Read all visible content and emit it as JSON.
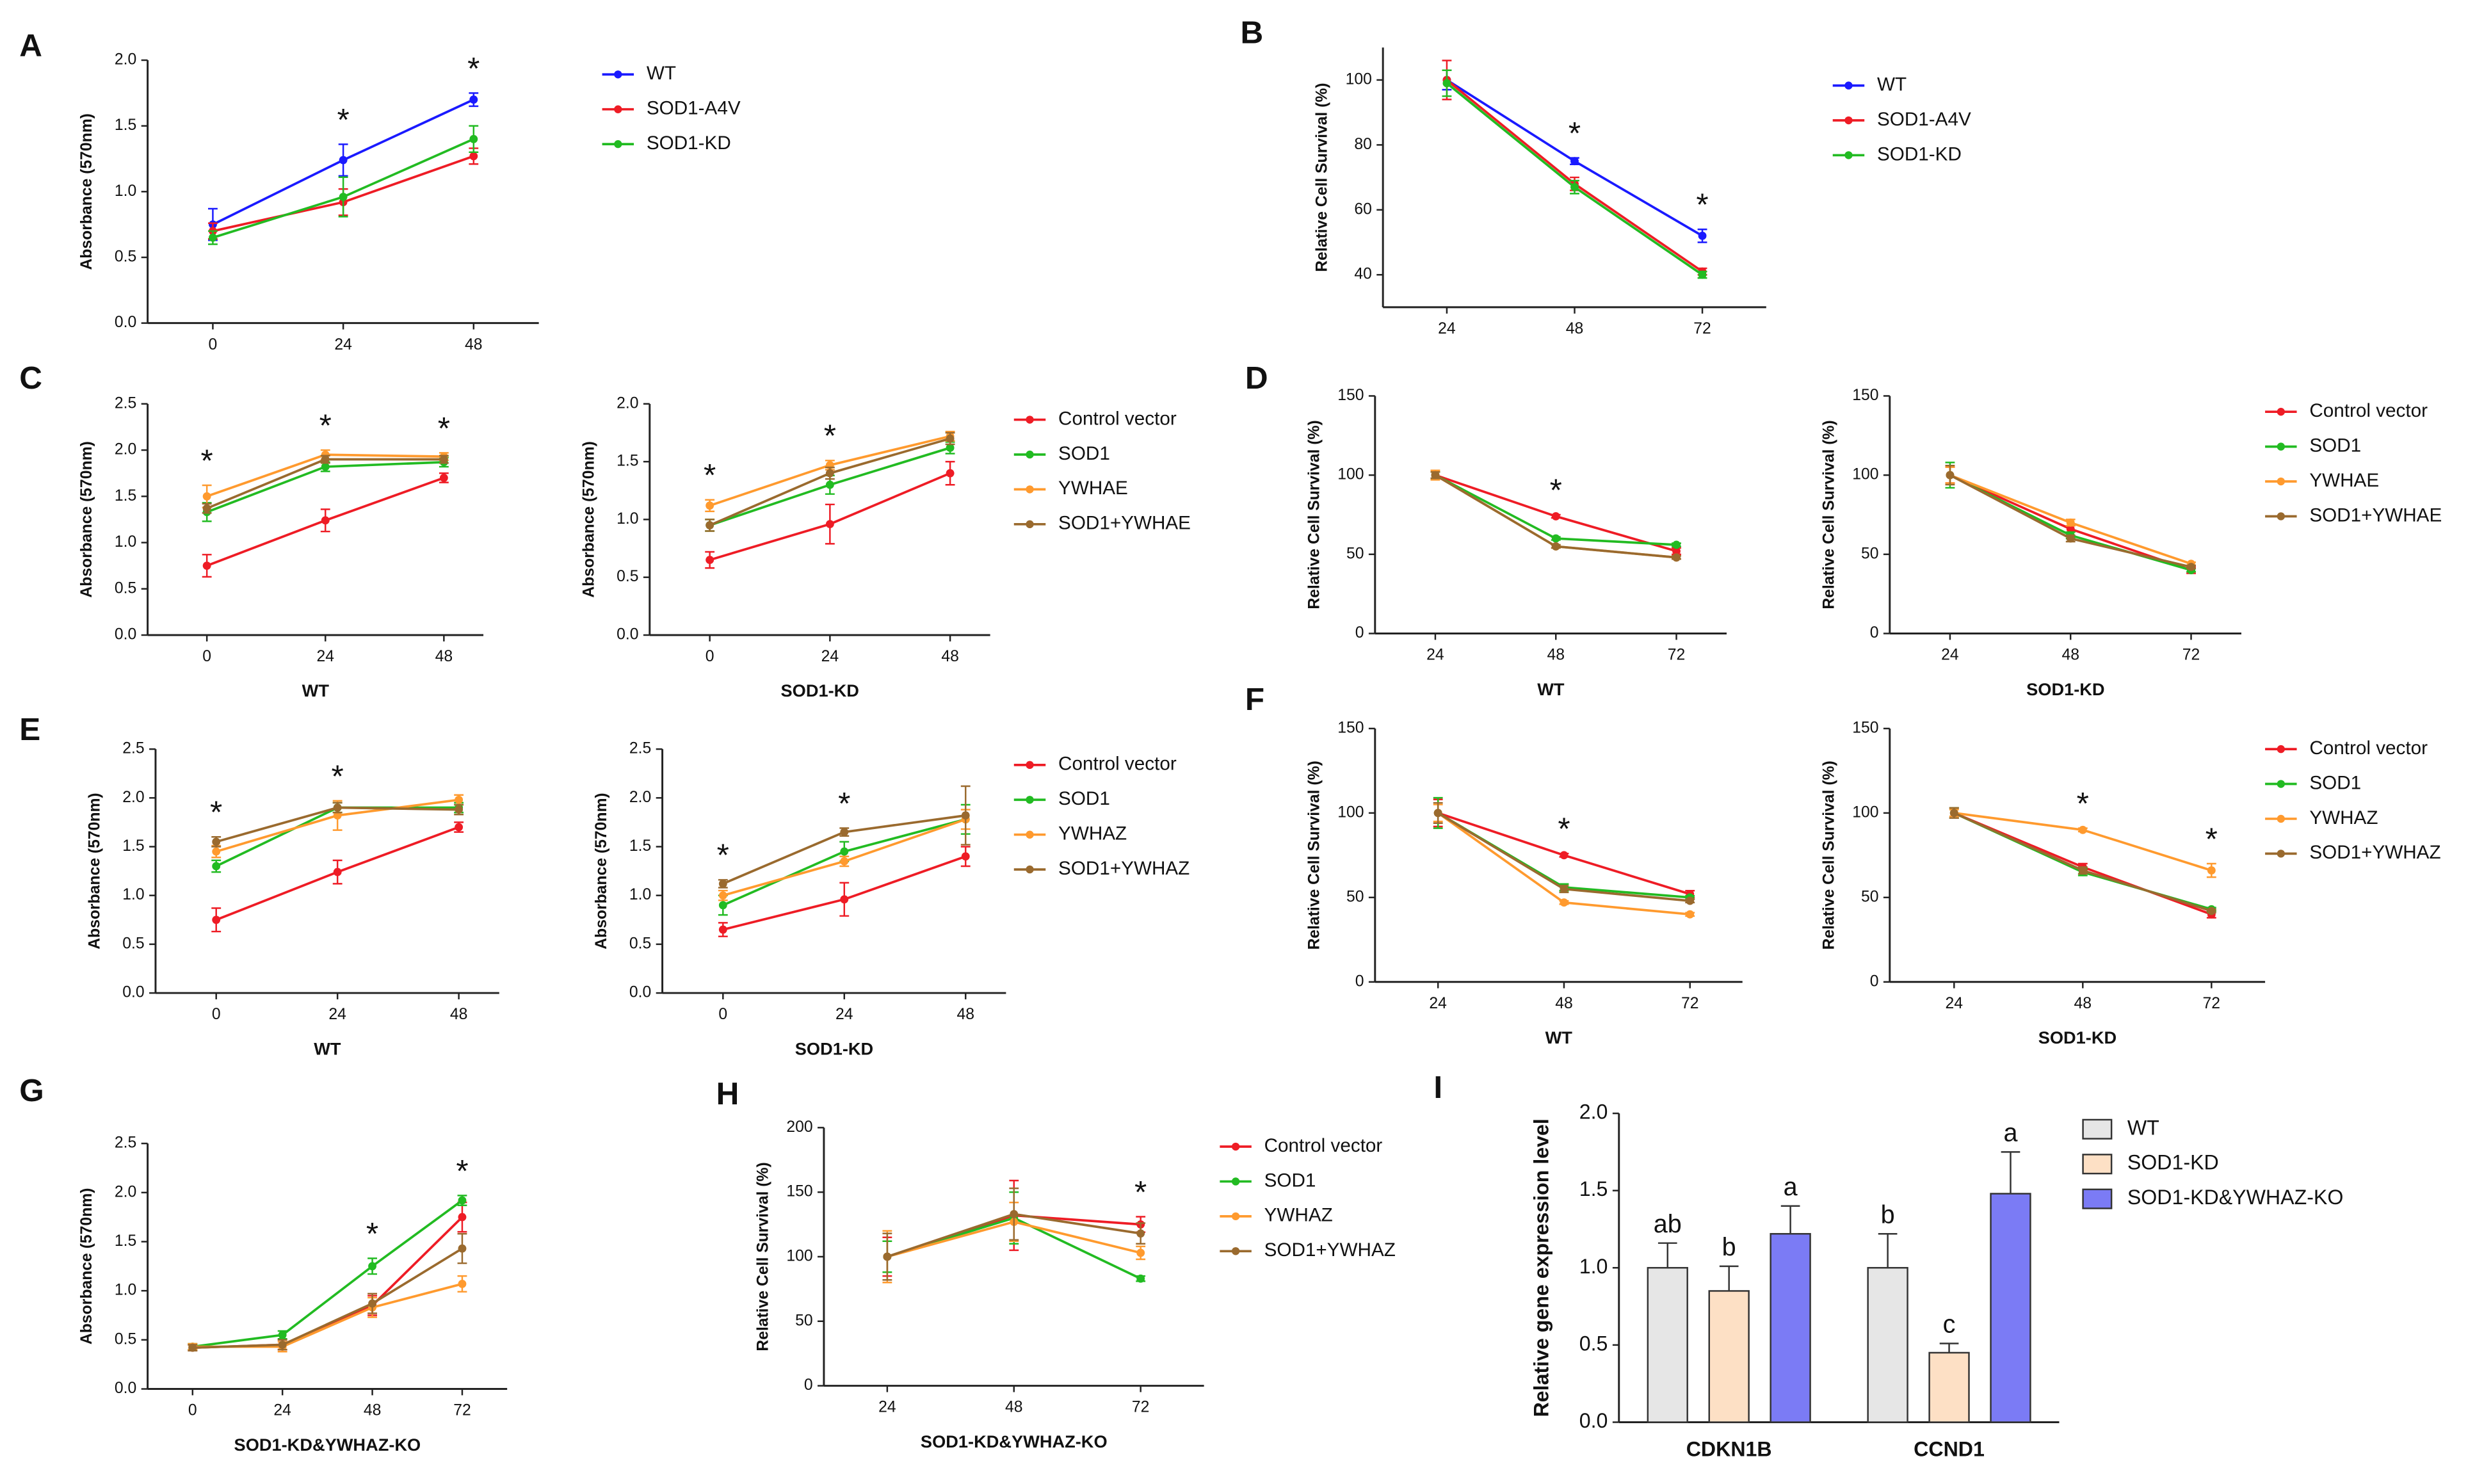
{
  "chart_data": [
    {
      "panel": "A",
      "type": "line",
      "y_label": "Absorbance (570nm)",
      "x": [
        0,
        24,
        48
      ],
      "xlim": [
        -12,
        60
      ],
      "ylim": [
        0,
        2
      ],
      "yticks": [
        {
          "value": 0,
          "label": "0.0"
        },
        {
          "value": 0.5,
          "label": "0.5"
        },
        {
          "value": 1,
          "label": "1.0"
        },
        {
          "value": 1.5,
          "label": "1.5"
        },
        {
          "value": 2,
          "label": "2.0"
        }
      ],
      "significance": [
        null,
        "*",
        "*"
      ],
      "series": [
        {
          "name": "WT",
          "color": "#1a1aff",
          "values": [
            0.75,
            1.24,
            1.7
          ],
          "errors": [
            0.12,
            0.12,
            0.05
          ]
        },
        {
          "name": "SOD1-A4V",
          "color": "#ee1c25",
          "values": [
            0.7,
            0.92,
            1.27
          ],
          "errors": [
            0.06,
            0.1,
            0.06
          ]
        },
        {
          "name": "SOD1-KD",
          "color": "#22bb22",
          "values": [
            0.65,
            0.96,
            1.4
          ],
          "errors": [
            0.05,
            0.15,
            0.1
          ]
        }
      ]
    },
    {
      "panel": "B",
      "type": "line",
      "y_label": "Relative Cell Survival (%)",
      "x": [
        24,
        48,
        72
      ],
      "xlim": [
        12,
        84
      ],
      "ylim": [
        30,
        110
      ],
      "yticks": [
        40,
        60,
        80,
        100
      ],
      "significance": [
        null,
        "*",
        "*"
      ],
      "series": [
        {
          "name": "WT",
          "color": "#1a1aff",
          "values": [
            100,
            75,
            52
          ],
          "errors": [
            3,
            1,
            2
          ]
        },
        {
          "name": "SOD1-A4V",
          "color": "#ee1c25",
          "values": [
            100,
            68,
            41
          ],
          "errors": [
            6,
            2,
            1
          ]
        },
        {
          "name": "SOD1-KD",
          "color": "#22bb22",
          "values": [
            99,
            67,
            40
          ],
          "errors": [
            4,
            2,
            1
          ]
        }
      ]
    },
    {
      "panel": "C",
      "type": "line",
      "y_label": "Absorbance (570nm)",
      "x_label": "WT",
      "x": [
        0,
        24,
        48
      ],
      "xlim": [
        -12,
        56
      ],
      "ylim": [
        0,
        2.5
      ],
      "yticks": [
        {
          "value": 0,
          "label": "0.0"
        },
        {
          "value": 0.5,
          "label": "0.5"
        },
        {
          "value": 1,
          "label": "1.0"
        },
        {
          "value": 1.5,
          "label": "1.5"
        },
        {
          "value": 2,
          "label": "2.0"
        },
        {
          "value": 2.5,
          "label": "2.5"
        }
      ],
      "significance": [
        "*",
        "*",
        "*"
      ],
      "series": [
        {
          "color": "#ee1c25",
          "values": [
            0.75,
            1.24,
            1.7
          ],
          "errors": [
            0.12,
            0.12,
            0.05
          ]
        },
        {
          "color": "#22bb22",
          "values": [
            1.33,
            1.82,
            1.87
          ],
          "errors": [
            0.1,
            0.05,
            0.05
          ]
        },
        {
          "color": "#ff9a2e",
          "values": [
            1.5,
            1.95,
            1.93
          ],
          "errors": [
            0.12,
            0.05,
            0.04
          ]
        },
        {
          "color": "#9a6a2e",
          "values": [
            1.37,
            1.9,
            1.9
          ],
          "errors": [
            0.05,
            0.04,
            0.04
          ]
        }
      ]
    },
    {
      "type": "line",
      "y_label": "Absorbance (570nm)",
      "x_label": "SOD1-KD",
      "x": [
        0,
        24,
        48
      ],
      "xlim": [
        -12,
        56
      ],
      "ylim": [
        0,
        2
      ],
      "yticks": [
        {
          "value": 0,
          "label": "0.0"
        },
        {
          "value": 0.5,
          "label": "0.5"
        },
        {
          "value": 1,
          "label": "1.0"
        },
        {
          "value": 1.5,
          "label": "1.5"
        },
        {
          "value": 2,
          "label": "2.0"
        }
      ],
      "significance": [
        "*",
        "*",
        null
      ],
      "series": [
        {
          "name": "Control vector",
          "color": "#ee1c25",
          "values": [
            0.65,
            0.96,
            1.4
          ],
          "errors": [
            0.07,
            0.17,
            0.1
          ]
        },
        {
          "name": "SOD1",
          "color": "#22bb22",
          "values": [
            0.95,
            1.3,
            1.62
          ],
          "errors": [
            0.05,
            0.08,
            0.05
          ]
        },
        {
          "name": "YWHAE",
          "color": "#ff9a2e",
          "values": [
            1.12,
            1.47,
            1.72
          ],
          "errors": [
            0.05,
            0.04,
            0.04
          ]
        },
        {
          "name": "SOD1+YWHAE",
          "color": "#9a6a2e",
          "values": [
            0.95,
            1.4,
            1.7
          ],
          "errors": [
            0.05,
            0.05,
            0.05
          ]
        }
      ]
    },
    {
      "panel": "D",
      "type": "line",
      "y_label": "Relative Cell Survival (%)",
      "x_label": "WT",
      "x": [
        24,
        48,
        72
      ],
      "xlim": [
        12,
        82
      ],
      "ylim": [
        0,
        150
      ],
      "yticks": [
        0,
        50,
        100,
        150
      ],
      "significance": [
        null,
        "*",
        null
      ],
      "series": [
        {
          "color": "#ee1c25",
          "values": [
            100,
            74,
            52
          ],
          "errors": [
            2,
            1,
            2
          ]
        },
        {
          "color": "#22bb22",
          "values": [
            100,
            60,
            56
          ],
          "errors": [
            2,
            1,
            1
          ]
        },
        {
          "color": "#ff9a2e",
          "values": [
            100,
            55,
            48
          ],
          "errors": [
            3,
            1,
            1
          ]
        },
        {
          "color": "#9a6a2e",
          "values": [
            100,
            55,
            48
          ],
          "errors": [
            2,
            1,
            1
          ]
        }
      ]
    },
    {
      "type": "line",
      "y_label": "Relative Cell Survival (%)",
      "x_label": "SOD1-KD",
      "x": [
        24,
        48,
        72
      ],
      "xlim": [
        12,
        82
      ],
      "ylim": [
        0,
        150
      ],
      "yticks": [
        0,
        50,
        100,
        150
      ],
      "significance": [
        null,
        null,
        null
      ],
      "series": [
        {
          "name": "Control vector",
          "color": "#ee1c25",
          "values": [
            100,
            66,
            40
          ],
          "errors": [
            5,
            2,
            2
          ]
        },
        {
          "name": "SOD1",
          "color": "#22bb22",
          "values": [
            100,
            62,
            40
          ],
          "errors": [
            8,
            2,
            1
          ]
        },
        {
          "name": "YWHAE",
          "color": "#ff9a2e",
          "values": [
            100,
            70,
            44
          ],
          "errors": [
            5,
            2,
            1
          ]
        },
        {
          "name": "SOD1+YWHAE",
          "color": "#9a6a2e",
          "values": [
            100,
            60,
            42
          ],
          "errors": [
            6,
            2,
            1
          ]
        }
      ]
    },
    {
      "panel": "E",
      "type": "line",
      "y_label": "Absorbance (570nm)",
      "x_label": "WT",
      "x": [
        0,
        24,
        48
      ],
      "xlim": [
        -12,
        56
      ],
      "ylim": [
        0,
        2.5
      ],
      "yticks": [
        {
          "value": 0,
          "label": "0.0"
        },
        {
          "value": 0.5,
          "label": "0.5"
        },
        {
          "value": 1,
          "label": "1.0"
        },
        {
          "value": 1.5,
          "label": "1.5"
        },
        {
          "value": 2,
          "label": "2.0"
        },
        {
          "value": 2.5,
          "label": "2.5"
        }
      ],
      "significance": [
        "*",
        "*",
        null
      ],
      "series": [
        {
          "color": "#ee1c25",
          "values": [
            0.75,
            1.24,
            1.7
          ],
          "errors": [
            0.12,
            0.12,
            0.05
          ]
        },
        {
          "color": "#22bb22",
          "values": [
            1.3,
            1.9,
            1.9
          ],
          "errors": [
            0.06,
            0.05,
            0.05
          ]
        },
        {
          "color": "#ff9a2e",
          "values": [
            1.45,
            1.82,
            1.98
          ],
          "errors": [
            0.06,
            0.15,
            0.05
          ]
        },
        {
          "color": "#9a6a2e",
          "values": [
            1.55,
            1.9,
            1.88
          ],
          "errors": [
            0.05,
            0.05,
            0.05
          ]
        }
      ]
    },
    {
      "type": "line",
      "y_label": "Absorbance (570nm)",
      "x_label": "SOD1-KD",
      "x": [
        0,
        24,
        48
      ],
      "xlim": [
        -12,
        56
      ],
      "ylim": [
        0,
        2.5
      ],
      "yticks": [
        {
          "value": 0,
          "label": "0.0"
        },
        {
          "value": 0.5,
          "label": "0.5"
        },
        {
          "value": 1,
          "label": "1.0"
        },
        {
          "value": 1.5,
          "label": "1.5"
        },
        {
          "value": 2,
          "label": "2.0"
        },
        {
          "value": 2.5,
          "label": "2.5"
        }
      ],
      "significance": [
        "*",
        "*",
        null
      ],
      "series": [
        {
          "name": "Control vector",
          "color": "#ee1c25",
          "values": [
            0.65,
            0.96,
            1.4
          ],
          "errors": [
            0.07,
            0.17,
            0.1
          ]
        },
        {
          "name": "SOD1",
          "color": "#22bb22",
          "values": [
            0.9,
            1.45,
            1.78
          ],
          "errors": [
            0.1,
            0.1,
            0.15
          ]
        },
        {
          "name": "YWHAZ",
          "color": "#ff9a2e",
          "values": [
            1.0,
            1.35,
            1.78
          ],
          "errors": [
            0.05,
            0.05,
            0.1
          ]
        },
        {
          "name": "SOD1+YWHAZ",
          "color": "#9a6a2e",
          "values": [
            1.12,
            1.65,
            1.82
          ],
          "errors": [
            0.04,
            0.04,
            0.3
          ]
        }
      ]
    },
    {
      "panel": "F",
      "type": "line",
      "y_label": "Relative Cell Survival (%)",
      "x_label": "WT",
      "x": [
        24,
        48,
        72
      ],
      "xlim": [
        12,
        82
      ],
      "ylim": [
        0,
        150
      ],
      "yticks": [
        0,
        50,
        100,
        150
      ],
      "significance": [
        null,
        "*",
        null
      ],
      "series": [
        {
          "color": "#ee1c25",
          "values": [
            100,
            75,
            52
          ],
          "errors": [
            8,
            1,
            2
          ]
        },
        {
          "color": "#22bb22",
          "values": [
            100,
            56,
            50
          ],
          "errors": [
            9,
            2,
            1
          ]
        },
        {
          "color": "#ff9a2e",
          "values": [
            100,
            47,
            40
          ],
          "errors": [
            5,
            1,
            1
          ]
        },
        {
          "color": "#9a6a2e",
          "values": [
            100,
            55,
            48
          ],
          "errors": [
            6,
            2,
            1
          ]
        }
      ]
    },
    {
      "type": "line",
      "y_label": "Relative Cell Survival (%)",
      "x_label": "SOD1-KD",
      "x": [
        24,
        48,
        72
      ],
      "xlim": [
        12,
        82
      ],
      "ylim": [
        0,
        150
      ],
      "yticks": [
        0,
        50,
        100,
        150
      ],
      "significance": [
        null,
        "*",
        "*"
      ],
      "series": [
        {
          "name": "Control vector",
          "color": "#ee1c25",
          "values": [
            100,
            68,
            40
          ],
          "errors": [
            3,
            2,
            2
          ]
        },
        {
          "name": "SOD1",
          "color": "#22bb22",
          "values": [
            100,
            65,
            43
          ],
          "errors": [
            3,
            2,
            1
          ]
        },
        {
          "name": "YWHAZ",
          "color": "#ff9a2e",
          "values": [
            100,
            90,
            66
          ],
          "errors": [
            2,
            1,
            4
          ]
        },
        {
          "name": "SOD1+YWHAZ",
          "color": "#9a6a2e",
          "values": [
            100,
            66,
            42
          ],
          "errors": [
            3,
            2,
            1
          ]
        }
      ]
    },
    {
      "panel": "G",
      "type": "line",
      "y_label": "Absorbance (570nm)",
      "x_label": "SOD1-KD&YWHAZ-KO",
      "x": [
        0,
        24,
        48,
        72
      ],
      "xlim": [
        -12,
        84
      ],
      "ylim": [
        0,
        2.5
      ],
      "yticks": [
        {
          "value": 0,
          "label": "0.0"
        },
        {
          "value": 0.5,
          "label": "0.5"
        },
        {
          "value": 1,
          "label": "1.0"
        },
        {
          "value": 1.5,
          "label": "1.5"
        },
        {
          "value": 2,
          "label": "2.0"
        },
        {
          "value": 2.5,
          "label": "2.5"
        }
      ],
      "significance": [
        null,
        null,
        "*",
        "*"
      ],
      "series": [
        {
          "name": "Control vector",
          "color": "#ee1c25",
          "values": [
            0.42,
            0.45,
            0.85,
            1.75
          ],
          "errors": [
            0.03,
            0.05,
            0.1,
            0.15
          ]
        },
        {
          "name": "SOD1",
          "color": "#22bb22",
          "values": [
            0.43,
            0.55,
            1.25,
            1.92
          ],
          "errors": [
            0.03,
            0.04,
            0.08,
            0.05
          ]
        },
        {
          "name": "YWHAZ",
          "color": "#ff9a2e",
          "values": [
            0.43,
            0.43,
            0.83,
            1.07
          ],
          "errors": [
            0.03,
            0.05,
            0.1,
            0.08
          ]
        },
        {
          "name": "SOD1+YWHAZ",
          "color": "#9a6a2e",
          "values": [
            0.42,
            0.45,
            0.87,
            1.43
          ],
          "errors": [
            0.03,
            0.05,
            0.1,
            0.15
          ]
        }
      ]
    },
    {
      "panel": "H",
      "type": "line",
      "y_label": "Relative Cell Survival (%)",
      "x_label": "SOD1-KD&YWHAZ-KO",
      "x": [
        24,
        48,
        72
      ],
      "xlim": [
        12,
        84
      ],
      "ylim": [
        0,
        200
      ],
      "yticks": [
        0,
        50,
        100,
        150,
        200
      ],
      "significance": [
        null,
        null,
        "*"
      ],
      "series": [
        {
          "name": "Control vector",
          "color": "#ee1c25",
          "values": [
            100,
            132,
            125
          ],
          "errors": [
            15,
            27,
            6
          ]
        },
        {
          "name": "SOD1",
          "color": "#22bb22",
          "values": [
            100,
            130,
            83
          ],
          "errors": [
            12,
            20,
            2
          ]
        },
        {
          "name": "YWHAZ",
          "color": "#ff9a2e",
          "values": [
            100,
            127,
            103
          ],
          "errors": [
            20,
            15,
            5
          ]
        },
        {
          "name": "SOD1+YWHAZ",
          "color": "#9a6a2e",
          "values": [
            100,
            133,
            118
          ],
          "errors": [
            18,
            20,
            8
          ]
        }
      ]
    },
    {
      "panel": "I",
      "type": "bar",
      "y_label": "Relative gene expression level",
      "categories": [
        "CDKN1B",
        "CCND1"
      ],
      "ylim": [
        0,
        2
      ],
      "yticks": [
        {
          "value": 0,
          "label": "0.0"
        },
        {
          "value": 0.5,
          "label": "0.5"
        },
        {
          "value": 1,
          "label": "1.0"
        },
        {
          "value": 1.5,
          "label": "1.5"
        },
        {
          "value": 2,
          "label": "2.0"
        }
      ],
      "series": [
        {
          "name": "WT",
          "color": "#e6e6e6",
          "values": [
            1.0,
            1.0
          ],
          "errors": [
            0.16,
            0.22
          ],
          "letters": [
            "ab",
            "b"
          ]
        },
        {
          "name": "SOD1-KD",
          "color": "#fde0c5",
          "values": [
            0.85,
            0.45
          ],
          "errors": [
            0.16,
            0.06
          ],
          "letters": [
            "b",
            "c"
          ]
        },
        {
          "name": "SOD1-KD&YWHAZ-KO",
          "color": "#7b7bf5",
          "values": [
            1.22,
            1.48
          ],
          "errors": [
            0.18,
            0.27
          ],
          "letters": [
            "a",
            "a"
          ]
        }
      ]
    }
  ]
}
